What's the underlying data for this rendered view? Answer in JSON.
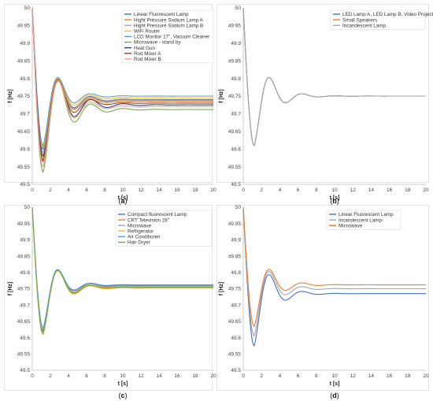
{
  "chart_data": [
    {
      "type": "line",
      "panel_label": "a",
      "xlabel": "t [s]",
      "ylabel": "f [Hz]",
      "xlim": [
        0,
        20
      ],
      "ylim": [
        49.5,
        50
      ],
      "xticks": [
        "0",
        "2",
        "4",
        "6",
        "8",
        "10",
        "12",
        "14",
        "16",
        "18",
        "20"
      ],
      "yticks": [
        "49.5",
        "49.55",
        "49.6",
        "49.65",
        "49.7",
        "49.75",
        "49.8",
        "49.85",
        "49.9",
        "49.95",
        "50"
      ],
      "legend_position": "top-right",
      "series": [
        {
          "name": "Linear Fluorescent Lamp",
          "color": "#4472c4",
          "min": 49.6,
          "min_t": 1.2,
          "overshoot": 49.795,
          "final": 49.74
        },
        {
          "name": "Hight Pressure Sodium Lamp A",
          "color": "#ed7d31",
          "min": 49.57,
          "min_t": 1.2,
          "overshoot": 49.795,
          "final": 49.735
        },
        {
          "name": "Hight Pressure Sodium Lamp B",
          "color": "#a5a5a5",
          "min": 49.59,
          "min_t": 1.2,
          "overshoot": 49.795,
          "final": 49.738
        },
        {
          "name": "WiFi Router",
          "color": "#ffc000",
          "min": 49.605,
          "min_t": 1.2,
          "overshoot": 49.797,
          "final": 49.745
        },
        {
          "name": "LCD Monitor 17\", Vacuum Cleaner",
          "color": "#5b9bd5",
          "min": 49.61,
          "min_t": 1.2,
          "overshoot": 49.8,
          "final": 49.75
        },
        {
          "name": "Microwave - stand by",
          "color": "#70ad47",
          "min": 49.535,
          "min_t": 1.2,
          "overshoot": 49.79,
          "final": 49.712
        },
        {
          "name": "Heat Gun",
          "color": "#264478",
          "min": 49.58,
          "min_t": 1.2,
          "overshoot": 49.793,
          "final": 49.725
        },
        {
          "name": "Rod Mixer A",
          "color": "#9e480e",
          "min": 49.565,
          "min_t": 1.2,
          "overshoot": 49.794,
          "final": 49.73
        },
        {
          "name": "Rod Mixer B",
          "color": "#ff9999",
          "min": 49.55,
          "min_t": 1.2,
          "overshoot": 49.792,
          "final": 49.72
        }
      ]
    },
    {
      "type": "line",
      "panel_label": "b",
      "xlabel": "t [s]",
      "ylabel": "f [Hz]",
      "xlim": [
        0,
        20
      ],
      "ylim": [
        49.5,
        50
      ],
      "xticks": [
        "0",
        "2",
        "4",
        "6",
        "8",
        "10",
        "12",
        "14",
        "16",
        "18",
        "20"
      ],
      "yticks": [
        "49.5",
        "49.55",
        "49.6",
        "49.65",
        "49.7",
        "49.75",
        "49.8",
        "49.85",
        "49.9",
        "49.95",
        "50"
      ],
      "legend_position": "top-right",
      "series": [
        {
          "name": "LED Lamp A, LED Lamp B, Video Projector",
          "color": "#4472c4",
          "min": 49.61,
          "min_t": 1.2,
          "overshoot": 49.8,
          "final": 49.75
        },
        {
          "name": "Small Speakers",
          "color": "#ed7d31",
          "min": 49.61,
          "min_t": 1.2,
          "overshoot": 49.8,
          "final": 49.75
        },
        {
          "name": "Incandescent Lamp",
          "color": "#a5a5a5",
          "min": 49.61,
          "min_t": 1.2,
          "overshoot": 49.8,
          "final": 49.75
        }
      ]
    },
    {
      "type": "line",
      "panel_label": "c",
      "xlabel": "t [s]",
      "ylabel": "f [Hz]",
      "xlim": [
        0,
        20
      ],
      "ylim": [
        49.5,
        50
      ],
      "xticks": [
        "0",
        "2",
        "4",
        "6",
        "8",
        "10",
        "12",
        "14",
        "16",
        "18",
        "20"
      ],
      "yticks": [
        "49.5",
        "49.55",
        "49.6",
        "49.65",
        "49.7",
        "49.75",
        "49.8",
        "49.85",
        "49.9",
        "49.95",
        "50"
      ],
      "legend_position": "top-right",
      "series": [
        {
          "name": "Compact fluorescent Lamp",
          "color": "#4472c4",
          "min": 49.62,
          "min_t": 1.2,
          "overshoot": 49.805,
          "final": 49.76
        },
        {
          "name": "CRT Television 28\"",
          "color": "#ed7d31",
          "min": 49.61,
          "min_t": 1.2,
          "overshoot": 49.803,
          "final": 49.755
        },
        {
          "name": "Microwave",
          "color": "#a5a5a5",
          "min": 49.625,
          "min_t": 1.2,
          "overshoot": 49.805,
          "final": 49.758
        },
        {
          "name": "Refrigerator",
          "color": "#ffc000",
          "min": 49.61,
          "min_t": 1.2,
          "overshoot": 49.802,
          "final": 49.752
        },
        {
          "name": "Air Conditioner",
          "color": "#5b9bd5",
          "min": 49.63,
          "min_t": 1.2,
          "overshoot": 49.806,
          "final": 49.762
        },
        {
          "name": "Hair Dryer",
          "color": "#70ad47",
          "min": 49.612,
          "min_t": 1.2,
          "overshoot": 49.803,
          "final": 49.754
        }
      ]
    },
    {
      "type": "line",
      "panel_label": "d",
      "xlabel": "t [s]",
      "ylabel": "f [Hz]",
      "xlim": [
        0,
        20
      ],
      "ylim": [
        49.5,
        50
      ],
      "xticks": [
        "0",
        "2",
        "4",
        "6",
        "8",
        "10",
        "12",
        "14",
        "16",
        "18",
        "20"
      ],
      "yticks": [
        "49.5",
        "49.55",
        "49.6",
        "49.65",
        "49.7",
        "49.75",
        "49.8",
        "49.85",
        "49.9",
        "49.95",
        "50"
      ],
      "legend_position": "top-right",
      "series": [
        {
          "name": "Linear Fluorescent Lamp",
          "color": "#4472c4",
          "min": 49.575,
          "min_t": 1.2,
          "overshoot": 49.79,
          "final": 49.735
        },
        {
          "name": "Incandescent Lamp-",
          "color": "#a5a5a5",
          "min": 49.605,
          "min_t": 1.2,
          "overshoot": 49.8,
          "final": 49.75
        },
        {
          "name": "Microwave",
          "color": "#ed7d31",
          "min": 49.635,
          "min_t": 1.2,
          "overshoot": 49.807,
          "final": 49.762
        }
      ]
    }
  ]
}
